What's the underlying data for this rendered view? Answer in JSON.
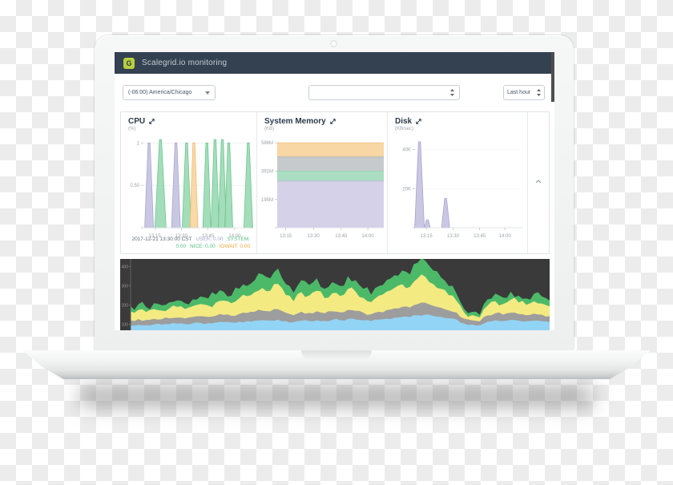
{
  "header": {
    "title": "Scalegrid.io monitoring",
    "logo_text": "G"
  },
  "toolbar": {
    "timezone": {
      "value": "(-06:00) America/Chicago"
    },
    "metric_select": {
      "value": ""
    },
    "time_range": {
      "value": "Last hour"
    }
  },
  "colors": {
    "header_bg": "#344150",
    "logo_green": "#b8cf3e",
    "accent_purple": "#b9b4d8",
    "accent_green": "#8fd3a8",
    "accent_orange": "#f6cf9b"
  },
  "chart_data": [
    {
      "id": "cpu",
      "type": "area",
      "title": "CPU",
      "unit": "(%)",
      "ylim": [
        0,
        1.06
      ],
      "y_ticks": [
        {
          "label": "1",
          "value": 1
        },
        {
          "label": "0.50",
          "value": 0.5
        }
      ],
      "x_ticks": [
        {
          "label": "13:15",
          "f": 0.106
        },
        {
          "label": "13:30",
          "f": 0.354
        },
        {
          "label": "13:45",
          "f": 0.602
        },
        {
          "label": "14:00",
          "f": 0.85
        }
      ],
      "series_colors": {
        "USER": {
          "f": "#c3bfdf",
          "s": "#aaa5d2",
          "t": "#a9a4cf"
        },
        "SYSTEM": {
          "f": "#97d8b0",
          "s": "#6cc692",
          "t": "#54c083"
        },
        "NICE": {
          "f": "#97d8b0",
          "s": "#6cc692",
          "t": "#54c083"
        },
        "IOWAIT": {
          "f": "#f8d49c",
          "s": "#eebb72",
          "t": "#eda63d"
        }
      },
      "spikes": [
        {
          "f": 0.053,
          "peak": 1.0,
          "series": "USER",
          "hw": 5.5
        },
        {
          "f": 0.159,
          "peak": 1.04,
          "series": "SYSTEM",
          "hw": 7
        },
        {
          "f": 0.303,
          "peak": 1.0,
          "series": "USER",
          "hw": 5.5
        },
        {
          "f": 0.402,
          "peak": 1.0,
          "series": "SYSTEM",
          "hw": 5.5
        },
        {
          "f": 0.47,
          "peak": 1.0,
          "series": "IOWAIT",
          "hw": 5
        },
        {
          "f": 0.591,
          "peak": 1.0,
          "series": "SYSTEM",
          "hw": 5
        },
        {
          "f": 0.667,
          "peak": 1.04,
          "series": "SYSTEM",
          "hw": 5
        },
        {
          "f": 0.735,
          "peak": 1.04,
          "series": "SYSTEM",
          "hw": 5
        },
        {
          "f": 0.795,
          "peak": 1.0,
          "series": "SYSTEM",
          "hw": 5
        },
        {
          "f": 0.977,
          "peak": 1.0,
          "series": "SYSTEM",
          "hw": 5.5
        }
      ],
      "legend": {
        "timestamp": "2017-12-21 13:30:00 CST",
        "items": [
          {
            "text": "USER: 0.00",
            "series": "USER"
          },
          {
            "text": "SYSTEM: 0.00",
            "series": "SYSTEM"
          },
          {
            "text": "NICE: 0.00",
            "series": "NICE"
          },
          {
            "text": "IOWAIT: 0.00",
            "series": "IOWAIT"
          }
        ]
      }
    },
    {
      "id": "memory",
      "type": "area-stacked",
      "title": "System Memory",
      "unit": "(KB)",
      "ylim": [
        0,
        620
      ],
      "y_ticks": [
        {
          "label": "586M",
          "value": 586
        },
        {
          "label": "391M",
          "value": 391
        },
        {
          "label": "195M",
          "value": 195
        }
      ],
      "x_ticks": [
        {
          "label": "13:15",
          "f": 0.08
        },
        {
          "label": "13:30",
          "f": 0.34
        },
        {
          "label": "13:45",
          "f": 0.6
        },
        {
          "label": "14:00",
          "f": 0.85
        }
      ],
      "bands": [
        {
          "top": 322,
          "color": "#d4d1e8",
          "stroke": "#bdb9da"
        },
        {
          "top": 391,
          "color": "#aaddc2",
          "stroke": "#8fd0ad"
        },
        {
          "top": 489,
          "color": "#c7cacd",
          "stroke": "#b4b7ba"
        },
        {
          "top": 586,
          "color": "#f8d7a4",
          "stroke": "#ecc27e"
        }
      ]
    },
    {
      "id": "disk",
      "type": "area",
      "title": "Disk",
      "unit": "(KB/sec)",
      "ylim": [
        0,
        46
      ],
      "y_ticks": [
        {
          "label": "40K",
          "value": 40
        },
        {
          "label": "20K",
          "value": 20
        }
      ],
      "x_ticks": [
        {
          "label": "13:15",
          "f": 0.106
        },
        {
          "label": "13:30",
          "f": 0.354
        },
        {
          "label": "13:45",
          "f": 0.602
        },
        {
          "label": "14:00",
          "f": 0.837
        }
      ],
      "series_colors": {
        "disk": {
          "f": "#c3bfdf",
          "s": "#a9a4cf",
          "t": "#a9a4cf"
        }
      },
      "spikes": [
        {
          "f": 0.042,
          "peak": 44,
          "series": "disk",
          "hw": 6
        },
        {
          "f": 0.115,
          "peak": 4,
          "series": "disk",
          "hw": 3.5
        },
        {
          "f": 0.285,
          "peak": 15,
          "series": "disk",
          "hw": 5
        }
      ]
    },
    {
      "id": "overview",
      "type": "area-stacked-dark",
      "title": "",
      "ylim": [
        70,
        440
      ],
      "y_ticks": [
        {
          "label": "400",
          "value": 400
        },
        {
          "label": "300",
          "value": 300
        },
        {
          "label": "200",
          "value": 200
        },
        {
          "label": "100",
          "value": 100
        }
      ],
      "layers": [
        {
          "name": "layer-green",
          "color": "#4cb968",
          "tops": [
            195,
            205,
            190,
            210,
            200,
            215,
            225,
            210,
            230,
            245,
            235,
            255,
            270,
            250,
            285,
            300,
            330,
            360,
            340,
            390,
            310,
            265,
            330,
            305,
            340,
            285,
            320,
            300,
            350,
            330,
            285,
            255,
            300,
            330,
            355,
            380,
            360,
            420,
            430,
            380,
            345,
            300,
            260,
            180,
            165,
            150,
            230,
            260,
            240,
            270,
            250,
            235,
            260,
            245,
            225
          ]
        },
        {
          "name": "layer-yellow",
          "color": "#f4ea82",
          "tops": [
            168,
            176,
            165,
            180,
            172,
            183,
            191,
            180,
            195,
            206,
            199,
            214,
            224,
            210,
            236,
            247,
            268,
            289,
            275,
            310,
            253,
            221,
            268,
            250,
            275,
            237,
            262,
            248,
            284,
            270,
            238,
            216,
            249,
            271,
            290,
            309,
            295,
            339,
            347,
            310,
            285,
            252,
            223,
            161,
            149,
            137,
            198,
            221,
            206,
            229,
            214,
            202,
            220,
            209,
            194
          ]
        },
        {
          "name": "layer-gray",
          "color": "#9d9d9d",
          "tops": [
            123,
            128,
            123,
            130,
            127,
            132,
            136,
            132,
            139,
            143,
            139,
            146,
            150,
            145,
            155,
            160,
            166,
            172,
            168,
            179,
            161,
            148,
            166,
            160,
            169,
            158,
            168,
            163,
            176,
            171,
            161,
            153,
            166,
            175,
            184,
            192,
            188,
            206,
            212,
            197,
            187,
            173,
            162,
            130,
            122,
            116,
            147,
            158,
            151,
            161,
            154,
            148,
            156,
            151,
            143
          ]
        },
        {
          "name": "layer-blue",
          "color": "#92d4f5",
          "tops": [
            95,
            98,
            96,
            100,
            99,
            102,
            104,
            103,
            106,
            108,
            107,
            110,
            112,
            111,
            115,
            118,
            120,
            122,
            121,
            125,
            118,
            112,
            120,
            118,
            122,
            119,
            124,
            122,
            128,
            126,
            122,
            118,
            125,
            130,
            135,
            140,
            138,
            148,
            152,
            145,
            140,
            132,
            126,
            105,
            100,
            96,
            115,
            122,
            118,
            124,
            120,
            116,
            120,
            117,
            112
          ]
        }
      ]
    }
  ]
}
